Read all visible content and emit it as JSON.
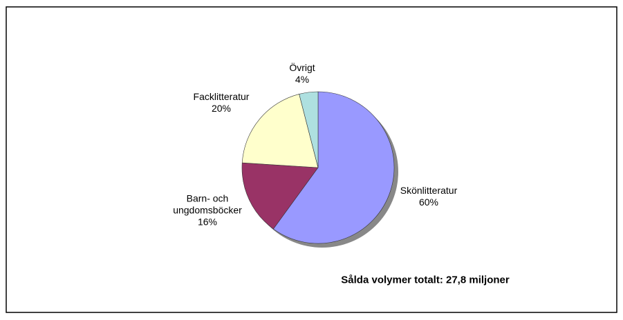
{
  "chart_data": {
    "type": "pie",
    "categories": [
      "Skönlitteratur",
      "Barn- och ungdomsböcker",
      "Facklitteratur",
      "Övrigt"
    ],
    "values": [
      60,
      16,
      20,
      4
    ],
    "value_labels": [
      "60%",
      "16%",
      "20%",
      "4%"
    ],
    "colors": [
      "#9999ff",
      "#993366",
      "#ffffcc",
      "#aee0e0"
    ],
    "annotation": "Sålda volymer totalt: 27,8 miljoner"
  }
}
